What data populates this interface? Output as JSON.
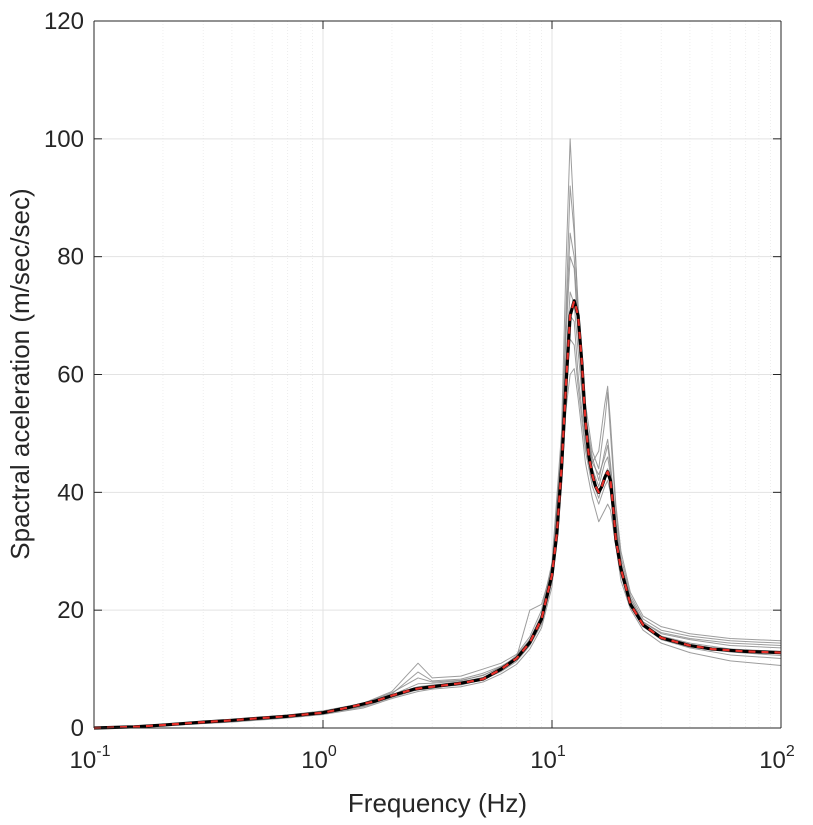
{
  "chart_data": {
    "type": "line",
    "xscale": "log",
    "xlim": [
      0.1,
      100
    ],
    "ylim": [
      0,
      120
    ],
    "grid": true,
    "minor_grid": true,
    "xlabel": "Frequency (Hz)",
    "ylabel": "Spactral aceleration (m/sec/sec)",
    "x_ticks": [
      {
        "base": "10",
        "exp": "-1",
        "value": 0.1
      },
      {
        "base": "10",
        "exp": "0",
        "value": 1
      },
      {
        "base": "10",
        "exp": "1",
        "value": 10
      },
      {
        "base": "10",
        "exp": "2",
        "value": 100
      }
    ],
    "y_ticks": [
      "0",
      "20",
      "40",
      "60",
      "80",
      "100",
      "120"
    ],
    "colors": {
      "samples": "#8c8c8c",
      "mean": "#000000",
      "target": "#e8302a",
      "axis": "#262626",
      "grid": "#e3e3e3"
    },
    "series": [
      {
        "role": "target",
        "style": "dashed",
        "x": [
          0.1,
          0.15,
          0.2,
          0.3,
          0.4,
          0.5,
          0.7,
          1,
          1.3,
          1.7,
          2,
          2.5,
          3,
          4,
          5,
          6,
          7,
          8,
          9,
          10,
          10.5,
          11,
          11.5,
          12,
          12.5,
          13,
          13.5,
          14,
          14.5,
          15,
          15.5,
          16,
          16.5,
          17,
          17.5,
          18,
          18.5,
          19,
          20,
          22,
          25,
          30,
          40,
          50,
          70,
          100
        ],
        "y": [
          0,
          0.2,
          0.5,
          1,
          1.3,
          1.6,
          2,
          2.6,
          3.5,
          4.6,
          5.5,
          6.6,
          7,
          7.6,
          8.3,
          10,
          11.8,
          14.5,
          18.5,
          26,
          33,
          44,
          58,
          70,
          72.5,
          70,
          62,
          52,
          46,
          43,
          41,
          40,
          41,
          42.5,
          43.5,
          42,
          37.5,
          32,
          27,
          21,
          17.5,
          15.3,
          14,
          13.4,
          13,
          12.8
        ]
      },
      {
        "role": "mean",
        "style": "solid",
        "x": [
          0.1,
          0.15,
          0.2,
          0.3,
          0.4,
          0.5,
          0.7,
          1,
          1.3,
          1.7,
          2,
          2.5,
          3,
          4,
          5,
          6,
          7,
          8,
          9,
          10,
          10.5,
          11,
          11.5,
          12,
          12.5,
          13,
          13.5,
          14,
          14.5,
          15,
          15.5,
          16,
          16.5,
          17,
          17.5,
          18,
          18.5,
          19,
          20,
          22,
          25,
          30,
          40,
          50,
          70,
          100
        ],
        "y": [
          0,
          0.2,
          0.5,
          1,
          1.3,
          1.6,
          2,
          2.6,
          3.5,
          4.6,
          5.5,
          6.6,
          7,
          7.6,
          8.3,
          10,
          11.8,
          14.5,
          18.5,
          26,
          33,
          44,
          58,
          70,
          72.5,
          70,
          62,
          52,
          46,
          43,
          41,
          40,
          41,
          42.5,
          43.5,
          42,
          37.5,
          32,
          27,
          21,
          17.5,
          15.3,
          14,
          13.4,
          13,
          12.8
        ]
      },
      {
        "role": "sample",
        "style": "solid",
        "x": [
          0.1,
          0.2,
          0.4,
          0.7,
          1,
          1.5,
          2,
          2.6,
          3,
          4,
          5,
          6,
          7,
          8,
          9,
          10,
          11,
          11.5,
          12,
          12.5,
          13,
          14,
          15,
          16,
          17,
          17.5,
          18,
          19,
          20,
          22,
          25,
          30,
          40,
          60,
          100
        ],
        "y": [
          0,
          0.6,
          1.4,
          2.2,
          2.9,
          4.2,
          6.2,
          11,
          8.5,
          8.8,
          10,
          11,
          12.5,
          15.5,
          20,
          28,
          50,
          78,
          100,
          86,
          70,
          52,
          45,
          47,
          55,
          58,
          52,
          38,
          30,
          23,
          19,
          17.2,
          16,
          15.2,
          14.8
        ]
      },
      {
        "role": "sample",
        "style": "solid",
        "x": [
          0.1,
          0.2,
          0.4,
          0.7,
          1,
          1.5,
          2,
          2.6,
          3,
          4,
          5,
          6,
          7,
          8,
          9,
          10,
          11,
          11.5,
          12,
          12.5,
          13,
          14,
          15,
          16,
          17,
          17.5,
          18,
          19,
          20,
          22,
          25,
          30,
          40,
          60,
          100
        ],
        "y": [
          0,
          0.5,
          1.3,
          2,
          2.7,
          4,
          5.8,
          9.5,
          8,
          8.3,
          9.3,
          10.5,
          12,
          20,
          21,
          27,
          47,
          70,
          92,
          84,
          72,
          55,
          47,
          44,
          52,
          57,
          50,
          37,
          29,
          22.5,
          18.5,
          16.6,
          15.6,
          14.8,
          14.4
        ]
      },
      {
        "role": "sample",
        "style": "solid",
        "x": [
          0.1,
          0.2,
          0.4,
          0.7,
          1,
          1.5,
          2,
          2.6,
          3,
          4,
          5,
          6,
          7,
          8,
          9,
          10,
          11,
          11.5,
          12,
          12.5,
          13,
          14,
          15,
          16,
          17,
          17.5,
          18,
          19,
          20,
          22,
          25,
          30,
          40,
          60,
          100
        ],
        "y": [
          0,
          0.5,
          1.2,
          2,
          2.6,
          3.8,
          5.6,
          7.5,
          7.6,
          8,
          9,
          10.2,
          12.3,
          15,
          19,
          27,
          46,
          68,
          84,
          80,
          68,
          53,
          46,
          42,
          47,
          49,
          45,
          35,
          28,
          22,
          18,
          16,
          15,
          14,
          13.6
        ]
      },
      {
        "role": "sample",
        "style": "solid",
        "x": [
          0.1,
          0.2,
          0.4,
          0.7,
          1,
          1.5,
          2,
          2.6,
          3,
          4,
          5,
          6,
          7,
          8,
          9,
          10,
          11,
          11.5,
          12,
          12.5,
          13,
          14,
          15,
          16,
          17,
          17.5,
          18,
          19,
          20,
          22,
          25,
          30,
          40,
          60,
          100
        ],
        "y": [
          0,
          0.5,
          1.3,
          2,
          2.6,
          3.9,
          5.5,
          7,
          7.3,
          7.8,
          8.6,
          10.1,
          11.8,
          14.6,
          18.4,
          26,
          45,
          62,
          74,
          72,
          64,
          50,
          44,
          41,
          45,
          46,
          43,
          34,
          27,
          21.5,
          17.8,
          15.6,
          14.4,
          13.4,
          13
        ]
      },
      {
        "role": "sample",
        "style": "solid",
        "x": [
          0.1,
          0.2,
          0.4,
          0.7,
          1,
          1.5,
          2,
          2.6,
          3,
          4,
          5,
          6,
          7,
          8,
          9,
          10,
          11,
          11.5,
          12,
          12.5,
          13,
          14,
          15,
          16,
          17,
          17.5,
          18,
          19,
          20,
          22,
          25,
          30,
          40,
          60,
          100
        ],
        "y": [
          0,
          0.4,
          1.1,
          1.8,
          2.4,
          3.6,
          5.2,
          6.5,
          6.9,
          7.3,
          8.2,
          9.6,
          11.3,
          14,
          17.6,
          25,
          43,
          58,
          66,
          65,
          58,
          47,
          41,
          38,
          41,
          42,
          40,
          32,
          26,
          20.8,
          17.2,
          15,
          13.6,
          12.4,
          11.8
        ]
      },
      {
        "role": "sample",
        "style": "solid",
        "x": [
          0.1,
          0.2,
          0.4,
          0.7,
          1,
          1.5,
          2,
          2.6,
          3,
          4,
          5,
          6,
          7,
          8,
          9,
          10,
          11,
          11.5,
          12,
          12.5,
          13,
          14,
          15,
          16,
          17,
          17.5,
          18,
          19,
          20,
          22,
          25,
          30,
          40,
          60,
          100
        ],
        "y": [
          0,
          0.4,
          1,
          1.7,
          2.3,
          3.4,
          5,
          6.2,
          6.6,
          7,
          7.8,
          9.2,
          10.8,
          13.4,
          17,
          24,
          41,
          54,
          60,
          61,
          56,
          45,
          39,
          35,
          37,
          38,
          37,
          31,
          25,
          20.2,
          16.6,
          14.4,
          12.8,
          11.4,
          10.6
        ]
      },
      {
        "role": "sample",
        "style": "solid",
        "x": [
          0.1,
          0.2,
          0.4,
          0.7,
          1,
          1.5,
          2,
          2.6,
          3,
          4,
          5,
          6,
          7,
          8,
          9,
          10,
          11,
          11.5,
          12,
          12.5,
          13,
          14,
          15,
          16,
          17,
          17.5,
          18,
          19,
          20,
          22,
          25,
          30,
          40,
          60,
          100
        ],
        "y": [
          0,
          0.5,
          1.3,
          2.1,
          2.8,
          4.1,
          6,
          8.5,
          7.8,
          8.1,
          8.9,
          10.4,
          12.1,
          15,
          19.2,
          27.5,
          48,
          66,
          80,
          78,
          67,
          52,
          45,
          43,
          46,
          48,
          44,
          35,
          28,
          22,
          18,
          16.2,
          15.2,
          14.4,
          14
        ]
      },
      {
        "role": "sample",
        "style": "solid",
        "x": [
          0.1,
          0.2,
          0.4,
          0.7,
          1,
          1.5,
          2,
          2.6,
          3,
          4,
          5,
          6,
          7,
          8,
          9,
          10,
          11,
          11.5,
          12,
          12.5,
          13,
          14,
          15,
          16,
          17,
          17.5,
          18,
          19,
          20,
          22,
          25,
          30,
          40,
          60,
          100
        ],
        "y": [
          0,
          0.4,
          1.2,
          1.9,
          2.5,
          3.7,
          5.4,
          6.8,
          7.1,
          7.6,
          8.4,
          9.9,
          11.6,
          14.2,
          18,
          25.5,
          44,
          60,
          70,
          69,
          60,
          48,
          42,
          39,
          43,
          44,
          41,
          33,
          26.5,
          21,
          17.4,
          15.3,
          14,
          12.9,
          12.3
        ]
      }
    ]
  }
}
